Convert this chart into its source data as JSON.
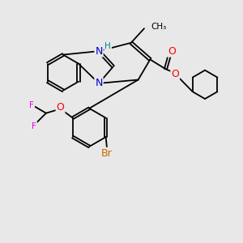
{
  "bg_color": "#e8e8e8",
  "atom_colors": {
    "N": "#0000cc",
    "O": "#ff0000",
    "F": "#ee00ee",
    "Br": "#cc6600",
    "H_label": "#008888",
    "C": "#000000"
  }
}
